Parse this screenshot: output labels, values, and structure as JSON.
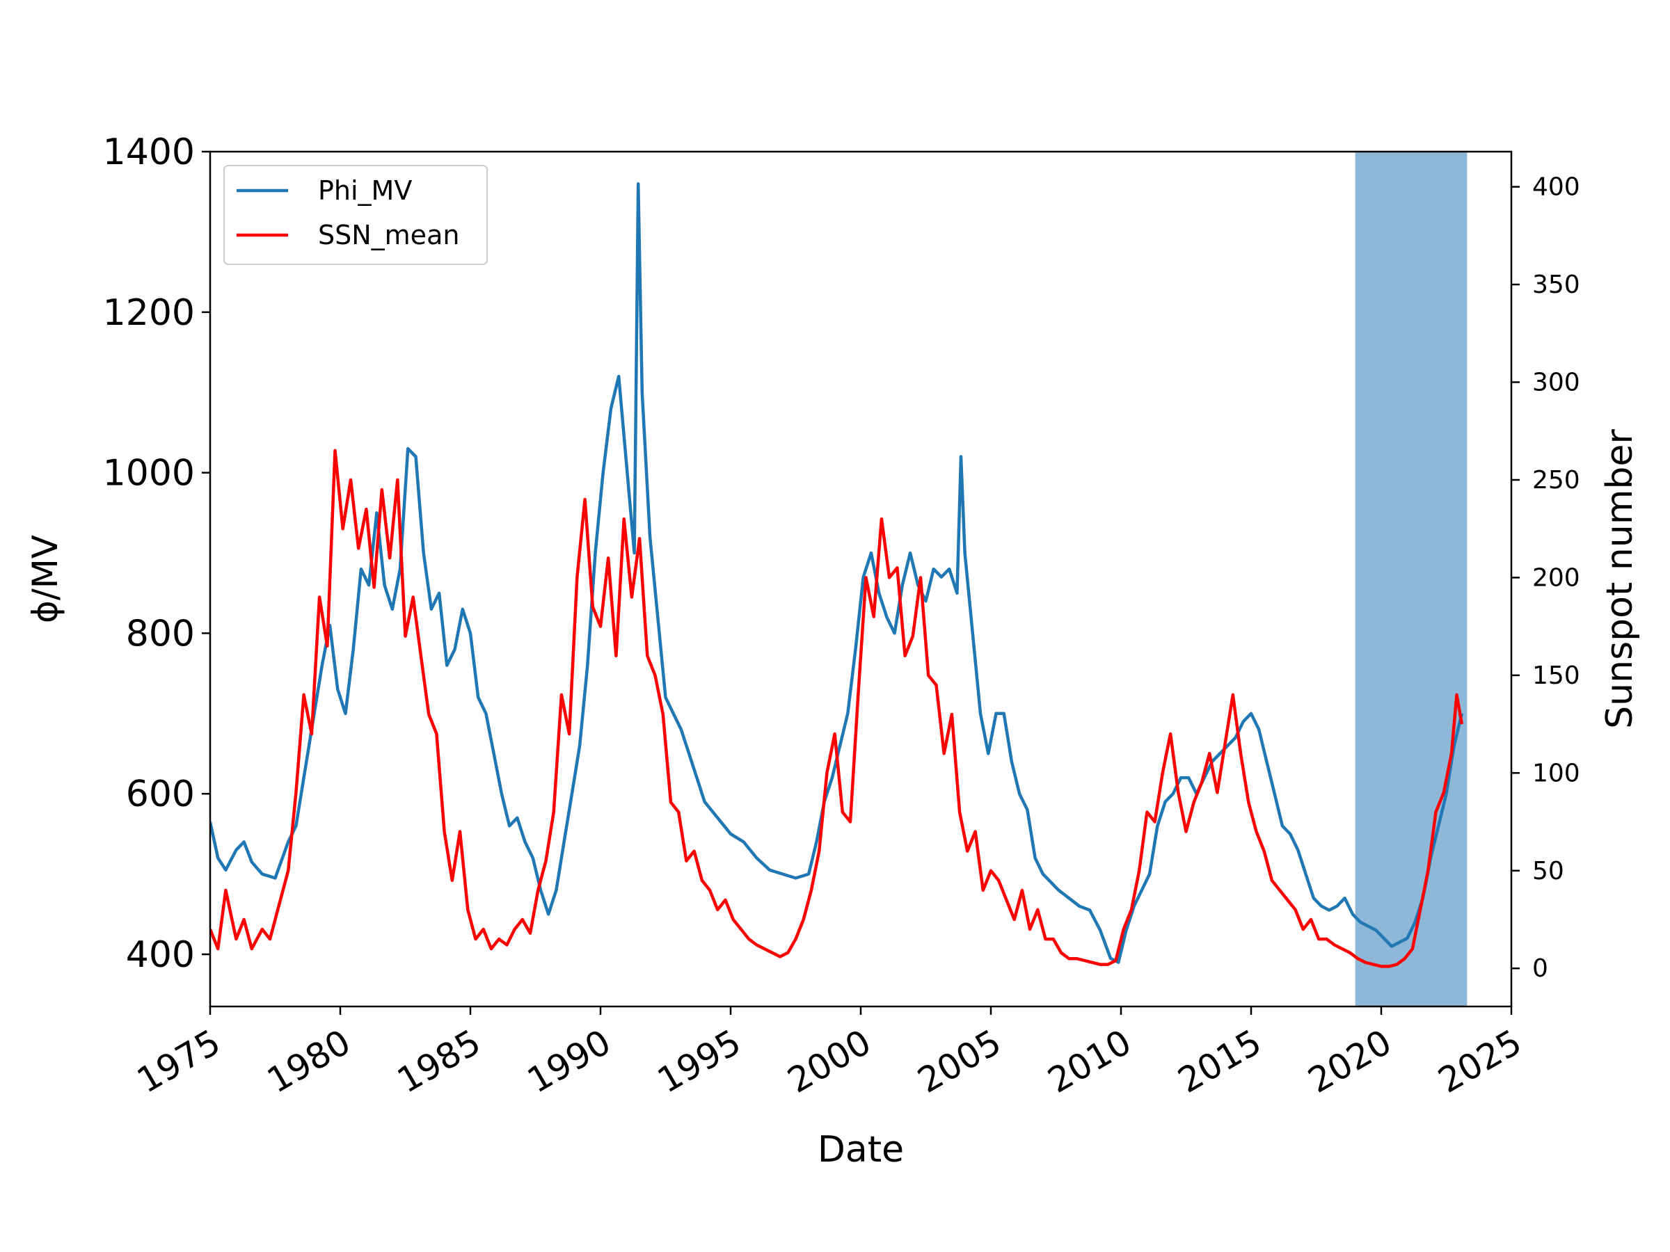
{
  "chart_data": {
    "type": "line",
    "xlabel": "Date",
    "ylabel_left": "ϕ/MV",
    "ylabel_right": "Sunspot number",
    "xlim": [
      1975,
      2025
    ],
    "ylim_left": [
      335,
      1400
    ],
    "ylim_right": [
      -19.5,
      418
    ],
    "x_ticks": [
      1975,
      1980,
      1985,
      1990,
      1995,
      2000,
      2005,
      2010,
      2015,
      2020,
      2025
    ],
    "y_ticks_left": [
      400,
      600,
      800,
      1000,
      1200,
      1400
    ],
    "y_ticks_right": [
      0,
      50,
      100,
      150,
      200,
      250,
      300,
      350,
      400
    ],
    "shaded_region": {
      "x_start": 2019.0,
      "x_end": 2023.3,
      "color": "#8fb8d8"
    },
    "grid": false,
    "legend_position": "top-left",
    "series": [
      {
        "name": "Phi_MV",
        "axis": "left",
        "color": "#1f77b4",
        "x": [
          1975.0,
          1975.3,
          1975.6,
          1976.0,
          1976.3,
          1976.6,
          1977.0,
          1977.5,
          1978.0,
          1978.3,
          1978.6,
          1979.0,
          1979.3,
          1979.6,
          1979.9,
          1980.2,
          1980.5,
          1980.8,
          1981.1,
          1981.4,
          1981.7,
          1982.0,
          1982.3,
          1982.6,
          1982.9,
          1983.2,
          1983.5,
          1983.8,
          1984.1,
          1984.4,
          1984.7,
          1985.0,
          1985.3,
          1985.6,
          1985.9,
          1986.2,
          1986.5,
          1986.8,
          1987.1,
          1987.4,
          1987.7,
          1988.0,
          1988.3,
          1988.6,
          1988.9,
          1989.2,
          1989.5,
          1989.8,
          1990.1,
          1990.4,
          1990.7,
          1991.0,
          1991.3,
          1991.45,
          1991.6,
          1991.9,
          1992.2,
          1992.5,
          1992.8,
          1993.1,
          1993.4,
          1993.7,
          1994.0,
          1994.5,
          1995.0,
          1995.5,
          1996.0,
          1996.5,
          1997.0,
          1997.5,
          1998.0,
          1998.3,
          1998.6,
          1998.9,
          1999.2,
          1999.5,
          1999.8,
          2000.1,
          2000.4,
          2000.7,
          2001.0,
          2001.3,
          2001.6,
          2001.9,
          2002.2,
          2002.5,
          2002.8,
          2003.1,
          2003.4,
          2003.7,
          2003.85,
          2004.0,
          2004.3,
          2004.6,
          2004.9,
          2005.2,
          2005.5,
          2005.8,
          2006.1,
          2006.4,
          2006.7,
          2007.0,
          2007.3,
          2007.6,
          2008.0,
          2008.4,
          2008.8,
          2009.2,
          2009.6,
          2009.9,
          2010.2,
          2010.5,
          2010.8,
          2011.1,
          2011.4,
          2011.7,
          2012.0,
          2012.3,
          2012.6,
          2012.9,
          2013.2,
          2013.5,
          2013.8,
          2014.1,
          2014.4,
          2014.7,
          2015.0,
          2015.3,
          2015.6,
          2015.9,
          2016.2,
          2016.5,
          2016.8,
          2017.1,
          2017.4,
          2017.7,
          2018.0,
          2018.3,
          2018.6,
          2018.9,
          2019.2,
          2019.5,
          2019.8,
          2020.1,
          2020.4,
          2020.7,
          2021.0,
          2021.3,
          2021.6,
          2021.9,
          2022.2,
          2022.5,
          2022.8,
          2023.1
        ],
        "y": [
          565,
          520,
          505,
          530,
          540,
          515,
          500,
          495,
          540,
          560,
          620,
          700,
          760,
          810,
          730,
          700,
          780,
          880,
          860,
          950,
          860,
          830,
          880,
          1030,
          1020,
          900,
          830,
          850,
          760,
          780,
          830,
          800,
          720,
          700,
          650,
          600,
          560,
          570,
          540,
          520,
          480,
          450,
          480,
          540,
          600,
          660,
          760,
          900,
          1000,
          1080,
          1120,
          1010,
          900,
          1360,
          1100,
          920,
          820,
          720,
          700,
          680,
          650,
          620,
          590,
          570,
          550,
          540,
          520,
          505,
          500,
          495,
          500,
          540,
          590,
          620,
          660,
          700,
          780,
          870,
          900,
          850,
          820,
          800,
          860,
          900,
          860,
          840,
          880,
          870,
          880,
          850,
          1020,
          900,
          800,
          700,
          650,
          700,
          700,
          640,
          600,
          580,
          520,
          500,
          490,
          480,
          470,
          460,
          455,
          430,
          395,
          390,
          430,
          460,
          480,
          500,
          560,
          590,
          600,
          620,
          620,
          600,
          620,
          640,
          650,
          660,
          670,
          690,
          700,
          680,
          640,
          600,
          560,
          550,
          530,
          500,
          470,
          460,
          455,
          460,
          470,
          450,
          440,
          435,
          430,
          420,
          410,
          415,
          420,
          440,
          470,
          520,
          560,
          600,
          660,
          700
        ]
      },
      {
        "name": "SSN_mean",
        "axis": "right",
        "color": "#ff0000",
        "x": [
          1975.0,
          1975.3,
          1975.6,
          1976.0,
          1976.3,
          1976.6,
          1977.0,
          1977.3,
          1977.6,
          1978.0,
          1978.3,
          1978.6,
          1978.9,
          1979.2,
          1979.5,
          1979.8,
          1980.1,
          1980.4,
          1980.7,
          1981.0,
          1981.3,
          1981.6,
          1981.9,
          1982.2,
          1982.5,
          1982.8,
          1983.1,
          1983.4,
          1983.7,
          1984.0,
          1984.3,
          1984.6,
          1984.9,
          1985.2,
          1985.5,
          1985.8,
          1986.1,
          1986.4,
          1986.7,
          1987.0,
          1987.3,
          1987.6,
          1987.9,
          1988.2,
          1988.5,
          1988.8,
          1989.1,
          1989.4,
          1989.7,
          1990.0,
          1990.3,
          1990.6,
          1990.9,
          1991.2,
          1991.5,
          1991.8,
          1992.1,
          1992.4,
          1992.7,
          1993.0,
          1993.3,
          1993.6,
          1993.9,
          1994.2,
          1994.5,
          1994.8,
          1995.1,
          1995.4,
          1995.7,
          1996.0,
          1996.3,
          1996.6,
          1996.9,
          1997.2,
          1997.5,
          1997.8,
          1998.1,
          1998.4,
          1998.7,
          1999.0,
          1999.3,
          1999.6,
          1999.9,
          2000.2,
          2000.5,
          2000.8,
          2001.1,
          2001.4,
          2001.7,
          2002.0,
          2002.3,
          2002.6,
          2002.9,
          2003.2,
          2003.5,
          2003.8,
          2004.1,
          2004.4,
          2004.7,
          2005.0,
          2005.3,
          2005.6,
          2005.9,
          2006.2,
          2006.5,
          2006.8,
          2007.1,
          2007.4,
          2007.7,
          2008.0,
          2008.3,
          2008.6,
          2008.9,
          2009.2,
          2009.5,
          2009.8,
          2010.1,
          2010.4,
          2010.7,
          2011.0,
          2011.3,
          2011.6,
          2011.9,
          2012.2,
          2012.5,
          2012.8,
          2013.1,
          2013.4,
          2013.7,
          2014.0,
          2014.3,
          2014.6,
          2014.9,
          2015.2,
          2015.5,
          2015.8,
          2016.1,
          2016.4,
          2016.7,
          2017.0,
          2017.3,
          2017.6,
          2017.9,
          2018.2,
          2018.5,
          2018.8,
          2019.1,
          2019.4,
          2019.7,
          2020.0,
          2020.3,
          2020.6,
          2020.9,
          2021.2,
          2021.5,
          2021.8,
          2022.1,
          2022.4,
          2022.7,
          2022.9,
          2023.1
        ],
        "y": [
          20,
          10,
          40,
          15,
          25,
          10,
          20,
          15,
          30,
          50,
          90,
          140,
          120,
          190,
          165,
          265,
          225,
          250,
          215,
          235,
          195,
          245,
          210,
          250,
          170,
          190,
          160,
          130,
          120,
          70,
          45,
          70,
          30,
          15,
          20,
          10,
          15,
          12,
          20,
          25,
          18,
          40,
          55,
          80,
          140,
          120,
          200,
          240,
          185,
          175,
          210,
          160,
          230,
          190,
          220,
          160,
          150,
          130,
          85,
          80,
          55,
          60,
          45,
          40,
          30,
          35,
          25,
          20,
          15,
          12,
          10,
          8,
          6,
          8,
          15,
          25,
          40,
          60,
          100,
          120,
          80,
          75,
          140,
          200,
          180,
          230,
          200,
          205,
          160,
          170,
          200,
          150,
          145,
          110,
          130,
          80,
          60,
          70,
          40,
          50,
          45,
          35,
          25,
          40,
          20,
          30,
          15,
          15,
          8,
          5,
          5,
          4,
          3,
          2,
          2,
          4,
          20,
          30,
          50,
          80,
          75,
          100,
          120,
          90,
          70,
          85,
          95,
          110,
          90,
          115,
          140,
          110,
          85,
          70,
          60,
          45,
          40,
          35,
          30,
          20,
          25,
          15,
          15,
          12,
          10,
          8,
          5,
          3,
          2,
          1,
          1,
          2,
          5,
          10,
          30,
          50,
          80,
          90,
          110,
          140,
          125
        ]
      }
    ]
  }
}
